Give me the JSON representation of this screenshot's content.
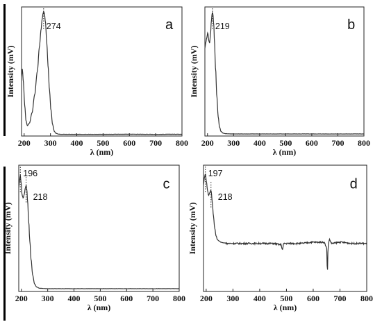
{
  "chart_data": [
    {
      "type": "line",
      "panel_label": "a",
      "xlabel": "λ (nm)",
      "ylabel": "Intensity (mV)",
      "xlim": [
        190,
        800
      ],
      "xticks": [
        200,
        300,
        400,
        500,
        600,
        700,
        800
      ],
      "ylim": [
        0,
        1
      ],
      "yticks_shown": false,
      "annotations": [
        {
          "x": 274,
          "text": "274"
        }
      ],
      "noise": "low",
      "series": [
        {
          "x": [
            190,
            193,
            197,
            202,
            207,
            212,
            220,
            230,
            240,
            250,
            258,
            264,
            268,
            272,
            274,
            277,
            281,
            286,
            291,
            296,
            302,
            308,
            315,
            322,
            330,
            340,
            400,
            500,
            600,
            700,
            800
          ],
          "y": [
            0.46,
            0.52,
            0.42,
            0.24,
            0.12,
            0.08,
            0.1,
            0.18,
            0.32,
            0.5,
            0.69,
            0.82,
            0.9,
            0.95,
            0.965,
            0.95,
            0.88,
            0.72,
            0.54,
            0.36,
            0.2,
            0.09,
            0.035,
            0.02,
            0.015,
            0.013,
            0.013,
            0.013,
            0.014,
            0.013,
            0.014
          ]
        }
      ]
    },
    {
      "type": "line",
      "panel_label": "b",
      "xlabel": "λ (nm)",
      "ylabel": "Intensity (mV)",
      "xlim": [
        190,
        800
      ],
      "xticks": [
        200,
        300,
        400,
        500,
        600,
        700,
        800
      ],
      "ylim": [
        0,
        1
      ],
      "yticks_shown": false,
      "annotations": [
        {
          "x": 219,
          "text": "219"
        }
      ],
      "noise": "low",
      "series": [
        {
          "x": [
            190,
            193,
            197,
            201,
            205,
            208,
            212,
            215,
            218,
            219,
            221,
            224,
            227,
            231,
            236,
            241,
            246,
            252,
            260,
            270,
            300,
            400,
            500,
            600,
            700,
            800
          ],
          "y": [
            0.68,
            0.72,
            0.76,
            0.8,
            0.74,
            0.72,
            0.8,
            0.9,
            0.95,
            0.96,
            0.94,
            0.86,
            0.72,
            0.52,
            0.3,
            0.15,
            0.07,
            0.035,
            0.022,
            0.018,
            0.016,
            0.016,
            0.016,
            0.016,
            0.016,
            0.016
          ]
        }
      ]
    },
    {
      "type": "line",
      "panel_label": "c",
      "xlabel": "λ (nm)",
      "ylabel": "Intensity (mV)",
      "xlim": [
        190,
        800
      ],
      "xticks": [
        200,
        300,
        400,
        500,
        600,
        700,
        800
      ],
      "ylim": [
        0,
        1
      ],
      "yticks_shown": false,
      "annotations": [
        {
          "x": 196,
          "text": "196"
        },
        {
          "x": 218,
          "text": "218"
        }
      ],
      "noise": "low",
      "series": [
        {
          "x": [
            190,
            193,
            196,
            199,
            203,
            207,
            211,
            215,
            218,
            221,
            224,
            228,
            232,
            237,
            243,
            250,
            258,
            270,
            300,
            400,
            500,
            600,
            700,
            800
          ],
          "y": [
            0.82,
            0.88,
            0.92,
            0.86,
            0.76,
            0.74,
            0.77,
            0.82,
            0.84,
            0.8,
            0.7,
            0.55,
            0.4,
            0.25,
            0.13,
            0.06,
            0.035,
            0.025,
            0.022,
            0.022,
            0.022,
            0.022,
            0.022,
            0.022
          ]
        }
      ]
    },
    {
      "type": "line",
      "panel_label": "d",
      "xlabel": "λ (nm)",
      "ylabel": "Intensity (mV)",
      "xlim": [
        190,
        800
      ],
      "xticks": [
        200,
        300,
        400,
        500,
        600,
        700,
        800
      ],
      "ylim": [
        0,
        1
      ],
      "yticks_shown": false,
      "annotations": [
        {
          "x": 197,
          "text": "197"
        },
        {
          "x": 218,
          "text": "218"
        }
      ],
      "noise": "high",
      "series": [
        {
          "x": [
            190,
            193,
            197,
            201,
            205,
            209,
            213,
            217,
            218,
            220,
            223,
            227,
            232,
            237,
            242,
            248,
            255,
            265,
            280,
            300,
            350,
            400,
            450,
            480,
            485,
            490,
            500,
            550,
            600,
            640,
            650,
            653,
            656,
            660,
            670,
            700,
            750,
            800
          ],
          "y": [
            0.84,
            0.9,
            0.93,
            0.87,
            0.8,
            0.76,
            0.78,
            0.8,
            0.8,
            0.77,
            0.7,
            0.6,
            0.5,
            0.44,
            0.41,
            0.4,
            0.39,
            0.385,
            0.38,
            0.38,
            0.38,
            0.38,
            0.38,
            0.37,
            0.33,
            0.38,
            0.38,
            0.38,
            0.39,
            0.39,
            0.35,
            0.16,
            0.36,
            0.41,
            0.38,
            0.39,
            0.38,
            0.38
          ]
        }
      ]
    }
  ]
}
